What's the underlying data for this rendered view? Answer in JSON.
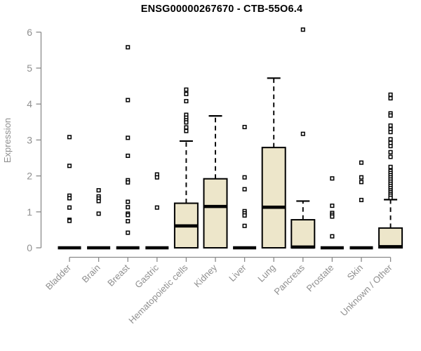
{
  "chart_data": {
    "type": "boxplot",
    "title": "ENSG00000267670 - CTB-55O6.4",
    "xlabel": "",
    "ylabel": "Expression",
    "ylim": [
      0,
      6.2
    ],
    "yticks": [
      0,
      1,
      2,
      3,
      4,
      5,
      6
    ],
    "grid": false,
    "legend": "none",
    "colors": {
      "box_fill": "#EDE6CA",
      "box_stroke": "#000000",
      "median": "#000000",
      "whisker": "#000000",
      "outlier_stroke": "#000000",
      "outlier_fill": "#ffffff",
      "axis": "#8a8a8a",
      "tick_label": "#8f8f8f",
      "title": "#000000"
    },
    "categories": [
      "Bladder",
      "Brain",
      "Breast",
      "Gastric",
      "Hematopoietic cells",
      "Kidney",
      "Liver",
      "Lung",
      "Pancreas",
      "Prostate",
      "Skin",
      "Unknown / Other"
    ],
    "boxes": [
      {
        "category": "Bladder",
        "q1": 0,
        "median": 0,
        "q3": 0,
        "whisker_low": 0,
        "whisker_high": 0,
        "outliers": [
          3.08,
          2.28,
          1.45,
          1.38,
          1.12,
          0.78,
          0.75
        ]
      },
      {
        "category": "Brain",
        "q1": 0,
        "median": 0,
        "q3": 0,
        "whisker_low": 0,
        "whisker_high": 0,
        "outliers": [
          1.6,
          1.43,
          1.37,
          1.3,
          0.95
        ]
      },
      {
        "category": "Breast",
        "q1": 0,
        "median": 0,
        "q3": 0,
        "whisker_low": 0,
        "whisker_high": 0,
        "outliers": [
          5.58,
          4.11,
          3.06,
          2.56,
          1.88,
          1.82,
          1.28,
          1.13,
          0.95,
          0.91,
          0.74,
          0.42
        ]
      },
      {
        "category": "Gastric",
        "q1": 0,
        "median": 0,
        "q3": 0,
        "whisker_low": 0,
        "whisker_high": 0,
        "outliers": [
          2.04,
          1.96,
          1.12
        ]
      },
      {
        "category": "Hematopoietic cells",
        "q1": 0,
        "median": 0.61,
        "q3": 1.24,
        "whisker_low": 0,
        "whisker_high": 2.97,
        "outliers": [
          4.4,
          4.28,
          4.08,
          3.7,
          3.62,
          3.55,
          3.49,
          3.35,
          3.25
        ]
      },
      {
        "category": "Kidney",
        "q1": 0,
        "median": 1.15,
        "q3": 1.92,
        "whisker_low": 0,
        "whisker_high": 3.67,
        "outliers": []
      },
      {
        "category": "Liver",
        "q1": 0,
        "median": 0,
        "q3": 0,
        "whisker_low": 0,
        "whisker_high": 0,
        "outliers": [
          3.36,
          1.96,
          1.63,
          1.02,
          0.96,
          0.9,
          0.61
        ]
      },
      {
        "category": "Lung",
        "q1": 0,
        "median": 1.13,
        "q3": 2.79,
        "whisker_low": 0,
        "whisker_high": 4.72,
        "outliers": []
      },
      {
        "category": "Pancreas",
        "q1": 0,
        "median": 0.02,
        "q3": 0.78,
        "whisker_low": 0,
        "whisker_high": 1.3,
        "outliers": [
          6.07,
          3.17
        ]
      },
      {
        "category": "Prostate",
        "q1": 0,
        "median": 0,
        "q3": 0,
        "whisker_low": 0,
        "whisker_high": 0,
        "outliers": [
          1.93,
          1.17,
          0.97,
          0.92,
          0.87,
          0.32
        ]
      },
      {
        "category": "Skin",
        "q1": 0,
        "median": 0,
        "q3": 0,
        "whisker_low": 0,
        "whisker_high": 0,
        "outliers": [
          2.37,
          1.96,
          1.83,
          1.33
        ]
      },
      {
        "category": "Unknown / Other",
        "q1": 0,
        "median": 0.03,
        "q3": 0.55,
        "whisker_low": 0,
        "whisker_high": 1.34,
        "outliers": [
          4.26,
          4.16,
          3.74,
          3.68,
          3.4,
          3.3,
          3.22,
          3.02,
          2.92,
          2.83,
          2.66,
          2.53,
          2.25,
          2.14,
          2.08,
          2.02,
          1.96,
          1.9,
          1.84,
          1.78,
          1.72,
          1.66,
          1.6,
          1.55,
          1.5,
          1.45,
          1.39
        ]
      }
    ]
  }
}
